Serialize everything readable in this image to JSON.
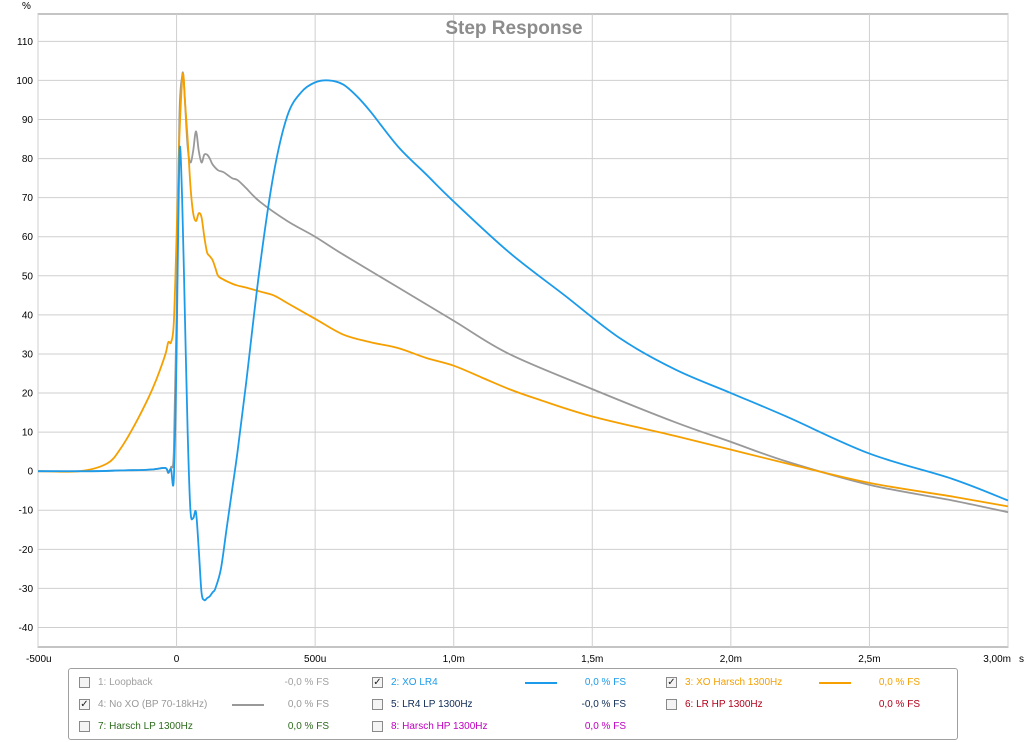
{
  "chart_data": {
    "type": "line",
    "title": "Step Response",
    "ylabel": "%",
    "xlabel": "",
    "x_unit_label": "s",
    "xlim": [
      -0.0005,
      0.003
    ],
    "ylim": [
      -45,
      117
    ],
    "grid": true,
    "y_ticks": [
      110,
      100,
      90,
      80,
      70,
      60,
      50,
      40,
      30,
      20,
      10,
      0,
      -10,
      -20,
      -30,
      -40
    ],
    "x_ticks": [
      {
        "value": -0.0005,
        "label": "-500u"
      },
      {
        "value": 0,
        "label": "0"
      },
      {
        "value": 0.0005,
        "label": "500u"
      },
      {
        "value": 0.001,
        "label": "1,0m"
      },
      {
        "value": 0.0015,
        "label": "1,5m"
      },
      {
        "value": 0.002,
        "label": "2,0m"
      },
      {
        "value": 0.0025,
        "label": "2,5m"
      },
      {
        "value": 0.003,
        "label": "3,00m"
      }
    ],
    "series": [
      {
        "name": "4: No XO (BP 70-18kHz)",
        "color": "#999999",
        "x": [
          -0.0005,
          -0.0003,
          -0.0002,
          -0.00012,
          -8e-05,
          -4e-05,
          -3e-05,
          -2e-05,
          -1e-05,
          0,
          1e-05,
          2e-05,
          2.5e-05,
          3e-05,
          4e-05,
          5e-05,
          6e-05,
          7e-05,
          8e-05,
          9e-05,
          0.0001,
          0.00011,
          0.00012,
          0.00013,
          0.00015,
          0.00017,
          0.0002,
          0.00022,
          0.00025,
          0.0003,
          0.0004,
          0.0005,
          0.0006,
          0.0008,
          0.001,
          0.0012,
          0.0015,
          0.0018,
          0.002,
          0.0022,
          0.0025,
          0.0028,
          0.003
        ],
        "values": [
          0,
          0,
          0.2,
          0.3,
          0.5,
          0.8,
          -0.5,
          1,
          5,
          40,
          90,
          101,
          101,
          95,
          83,
          79,
          82,
          87,
          82,
          79,
          81,
          81,
          80,
          78.5,
          77,
          76.5,
          75,
          74.5,
          72.5,
          69,
          64,
          60,
          55.5,
          47,
          38.5,
          30,
          21,
          12.5,
          7.5,
          2.5,
          -3.5,
          -7.5,
          -10.5
        ]
      },
      {
        "name": "3: XO Harsch 1300Hz",
        "color": "#f5a000",
        "x": [
          -0.0005,
          -0.00035,
          -0.00025,
          -0.0002,
          -0.00015,
          -0.0001,
          -7e-05,
          -4e-05,
          -3e-05,
          -2e-05,
          -1e-05,
          0,
          1e-05,
          2e-05,
          2.5e-05,
          3e-05,
          4e-05,
          5e-05,
          6e-05,
          7e-05,
          8e-05,
          9e-05,
          0.0001,
          0.00011,
          0.00012,
          0.00013,
          0.00014,
          0.00015,
          0.00017,
          0.0002,
          0.00022,
          0.00025,
          0.0003,
          0.00035,
          0.0004,
          0.0005,
          0.0006,
          0.0007,
          0.0008,
          0.0009,
          0.001,
          0.0011,
          0.0012,
          0.0013,
          0.0015,
          0.0018,
          0.002,
          0.0022,
          0.0025,
          0.0028,
          0.003
        ],
        "values": [
          0,
          0,
          2,
          6,
          12,
          19,
          24,
          30,
          33,
          33,
          38,
          60,
          85,
          100,
          101,
          95,
          85,
          73,
          66,
          64,
          66,
          65,
          60,
          56,
          55,
          54,
          52,
          50,
          49,
          48,
          47.5,
          47,
          46,
          45,
          43,
          39,
          35,
          33,
          31.5,
          29,
          27,
          24,
          21,
          18.5,
          14,
          9,
          5.5,
          2,
          -3,
          -6.5,
          -9
        ]
      },
      {
        "name": "2: XO LR4",
        "color": "#1c9bea",
        "x": [
          -0.0005,
          -0.0003,
          -0.0002,
          -0.00012,
          -8e-05,
          -4e-05,
          -3e-05,
          -2e-05,
          -1e-05,
          0,
          1e-05,
          2e-05,
          3e-05,
          4e-05,
          5e-05,
          6e-05,
          7e-05,
          8e-05,
          9e-05,
          0.0001,
          0.00011,
          0.00012,
          0.00013,
          0.00014,
          0.00016,
          0.00018,
          0.0002,
          0.00022,
          0.00025,
          0.0003,
          0.00035,
          0.0004,
          0.00045,
          0.0005,
          0.00055,
          0.0006,
          0.00065,
          0.0007,
          0.0008,
          0.0009,
          0.001,
          0.0012,
          0.0014,
          0.0016,
          0.0018,
          0.002,
          0.0022,
          0.0025,
          0.0028,
          0.003
        ],
        "values": [
          0,
          0,
          0.2,
          0.3,
          0.5,
          0.8,
          -0.3,
          0.5,
          -2,
          30,
          81,
          70,
          40,
          10,
          -10,
          -12,
          -10.5,
          -20,
          -31,
          -33,
          -32.5,
          -32,
          -31,
          -30,
          -25,
          -15,
          -5,
          5,
          22,
          52,
          76,
          91,
          97,
          99.5,
          100,
          99,
          96,
          92,
          83,
          76,
          69,
          56,
          45,
          34,
          26,
          20,
          14,
          4.5,
          -2,
          -7.5
        ]
      }
    ]
  },
  "legend": {
    "items": [
      {
        "label": "1: Loopback",
        "value": "-0,0 % FS",
        "checked": false,
        "label_color": "#a0a0a0",
        "value_color": "#a0a0a0",
        "line_color": ""
      },
      {
        "label": "2: XO LR4",
        "value": "0,0 % FS",
        "checked": true,
        "label_color": "#1c9bea",
        "value_color": "#1c9bea",
        "line_color": "#1c9bea"
      },
      {
        "label": "3: XO Harsch 1300Hz",
        "value": "0,0 % FS",
        "checked": true,
        "label_color": "#f5a000",
        "value_color": "#f5a000",
        "line_color": "#f5a000"
      },
      {
        "label": "4: No XO (BP 70-18kHz)",
        "value": "0,0 % FS",
        "checked": true,
        "label_color": "#999999",
        "value_color": "#999999",
        "line_color": "#999999"
      },
      {
        "label": "5: LR4 LP 1300Hz",
        "value": "-0,0 % FS",
        "checked": false,
        "label_color": "#0e2a55",
        "value_color": "#0e2a55",
        "line_color": ""
      },
      {
        "label": "6: LR HP 1300Hz",
        "value": "0,0 % FS",
        "checked": false,
        "label_color": "#b3001b",
        "value_color": "#b3001b",
        "line_color": ""
      },
      {
        "label": "7: Harsch LP 1300Hz",
        "value": "0,0 % FS",
        "checked": false,
        "label_color": "#2e6b1e",
        "value_color": "#2e6b1e",
        "line_color": ""
      },
      {
        "label": "8: Harsch HP 1300Hz",
        "value": "0,0 % FS",
        "checked": false,
        "label_color": "#c000c0",
        "value_color": "#c000c0",
        "line_color": ""
      }
    ]
  }
}
